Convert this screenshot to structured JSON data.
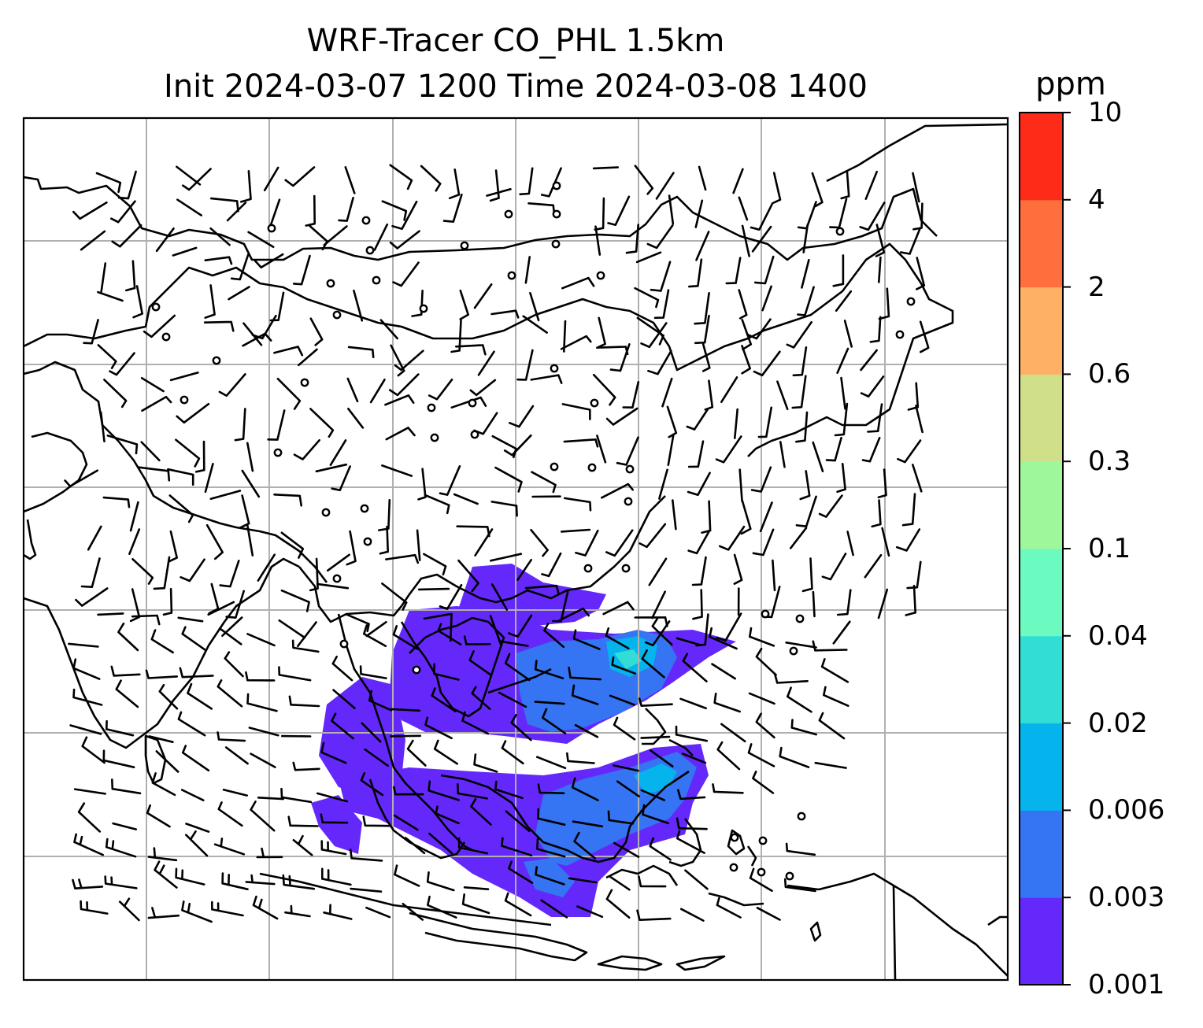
{
  "title_line1": "WRF-Tracer CO_PHL 1.5km",
  "title_line2": "Init 2024-03-07 1200 Time 2024-03-08 1400",
  "colorbar": {
    "units": "ppm",
    "levels": [
      "0.001",
      "0.003",
      "0.006",
      "0.02",
      "0.04",
      "0.1",
      "0.3",
      "0.6",
      "2",
      "4",
      "10"
    ],
    "colors": [
      "#6429fa",
      "#3574f2",
      "#05b4ec",
      "#32ddd5",
      "#6bfac0",
      "#9ef89b",
      "#d0e088",
      "#feb065",
      "#ff6f3e",
      "#ff2b19"
    ]
  },
  "map": {
    "gridlines": true,
    "plume_colors": {
      "outer": "#6429fa",
      "mid": "#3574f2",
      "inner": "#05b4ec",
      "core": "#32ddd5"
    },
    "overlay": "wind barbs and coastlines"
  }
}
